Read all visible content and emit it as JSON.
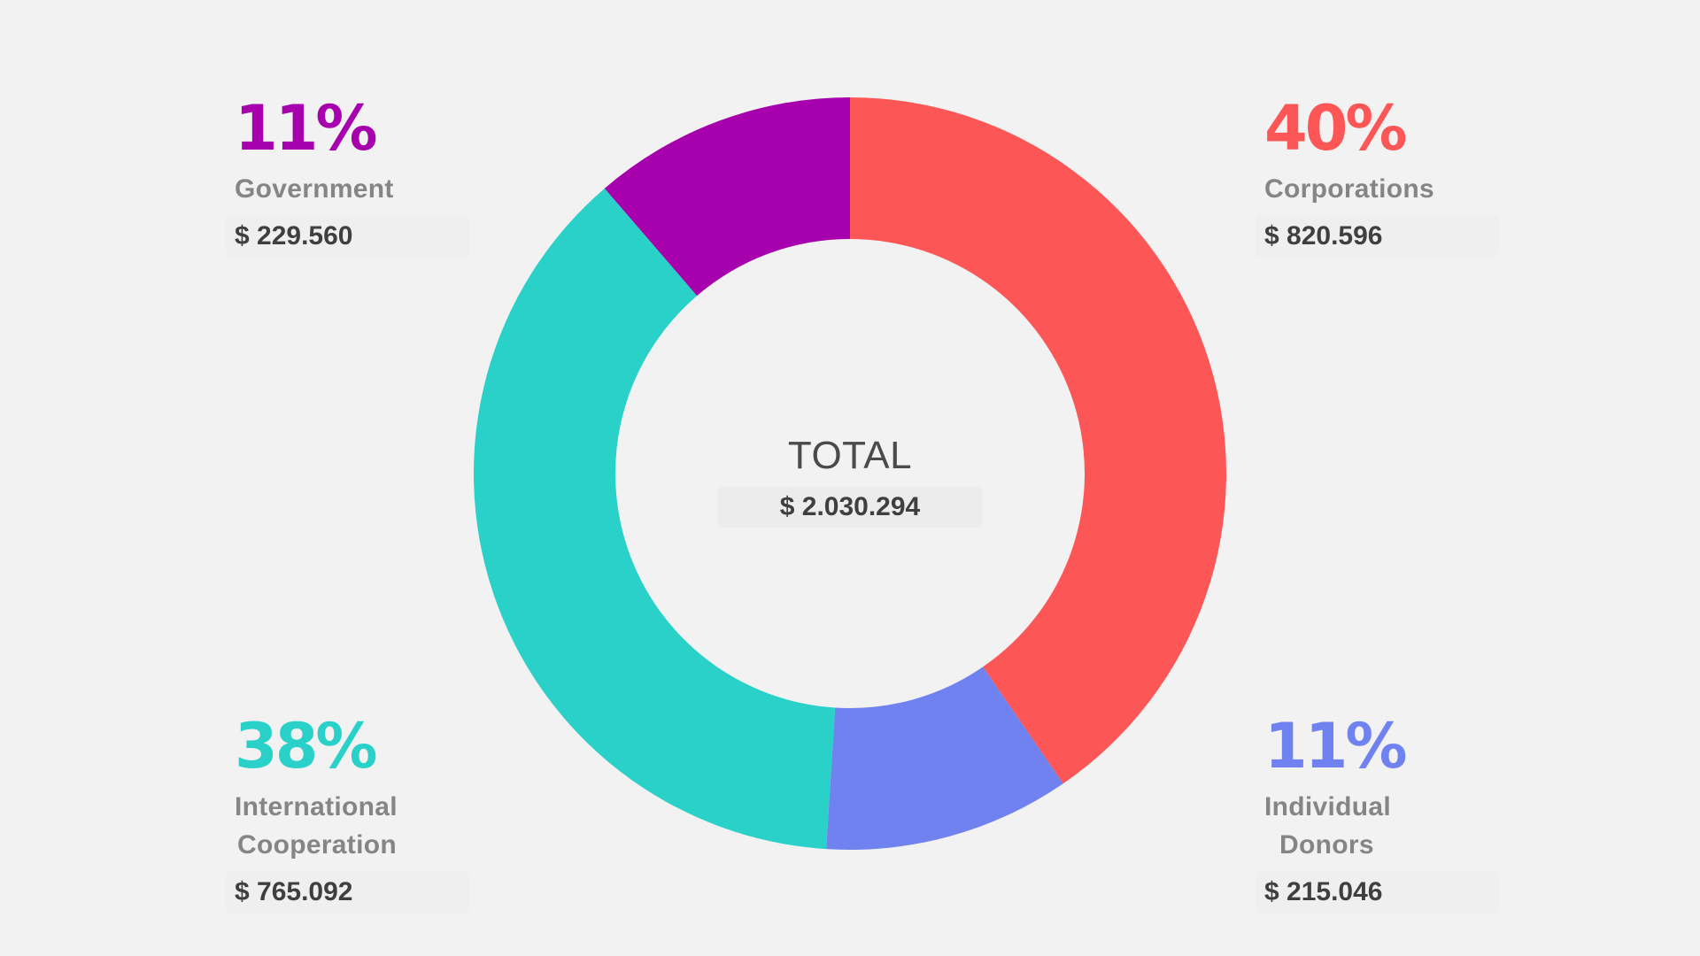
{
  "chart_data": {
    "type": "pie",
    "donut": true,
    "total_label": "TOTAL",
    "total_value": "$ 2.030.294",
    "slices": [
      {
        "label": "Corporations",
        "percent_label": "40%",
        "amount_label": "$ 820.596",
        "value": 820596,
        "color": "#fd5656"
      },
      {
        "label": "Individual Donors",
        "label_lines": [
          "Individual",
          "Donors"
        ],
        "percent_label": "11%",
        "amount_label": "$ 215.046",
        "value": 215046,
        "color": "#6f82ef"
      },
      {
        "label": "International Cooperation",
        "label_lines": [
          "International",
          "Cooperation"
        ],
        "percent_label": "38%",
        "amount_label": "$ 765.092",
        "value": 765092,
        "color": "#29d1c9"
      },
      {
        "label": "Government",
        "percent_label": "11%",
        "amount_label": "$ 229.560",
        "value": 229560,
        "color": "#a700ad"
      }
    ]
  }
}
